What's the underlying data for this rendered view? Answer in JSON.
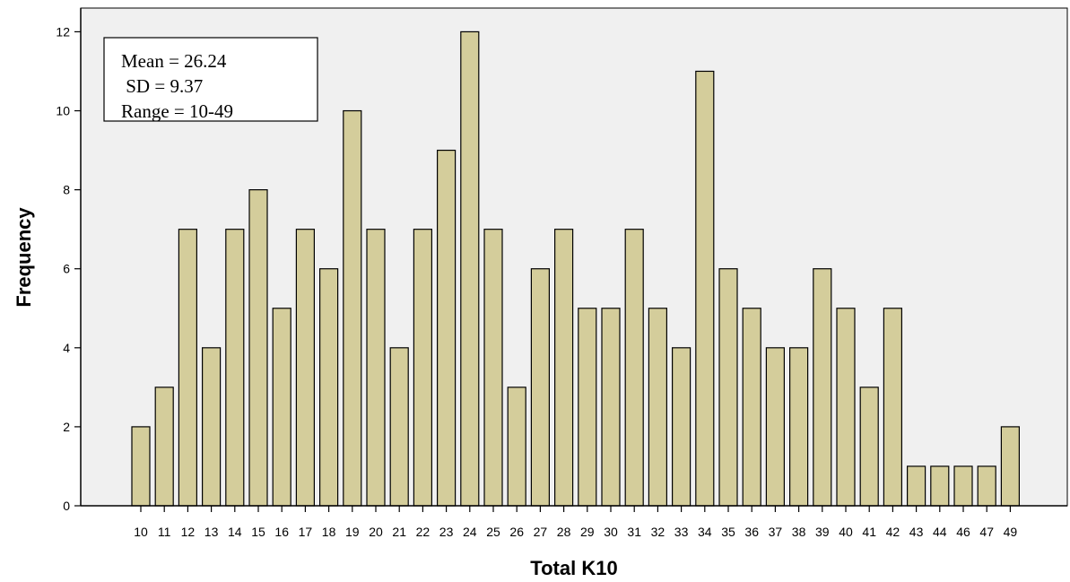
{
  "chart_data": {
    "type": "bar",
    "title": "",
    "xlabel": "Total K10",
    "ylabel": "Frequency",
    "ylim": [
      0,
      12.6
    ],
    "yticks": [
      0,
      2,
      4,
      6,
      8,
      10,
      12
    ],
    "grid": false,
    "categories": [
      "10",
      "11",
      "12",
      "13",
      "14",
      "15",
      "16",
      "17",
      "18",
      "19",
      "20",
      "21",
      "22",
      "23",
      "24",
      "25",
      "26",
      "27",
      "28",
      "29",
      "30",
      "31",
      "32",
      "33",
      "34",
      "35",
      "36",
      "37",
      "38",
      "39",
      "40",
      "41",
      "42",
      "43",
      "44",
      "46",
      "47",
      "49"
    ],
    "values": [
      2,
      3,
      7,
      4,
      7,
      8,
      5,
      7,
      6,
      10,
      7,
      4,
      7,
      9,
      12,
      7,
      3,
      6,
      7,
      5,
      5,
      7,
      5,
      4,
      11,
      6,
      5,
      4,
      4,
      6,
      5,
      3,
      5,
      1,
      1,
      1,
      1,
      2
    ],
    "annotation": {
      "placement": "top-left",
      "lines": [
        "Mean = 26.24",
        " SD = 9.37",
        "Range = 10-49"
      ]
    },
    "colors": {
      "plot_background": "#f0f0f0",
      "bar_fill": "#d4cd9b",
      "bar_stroke": "#000000"
    }
  }
}
